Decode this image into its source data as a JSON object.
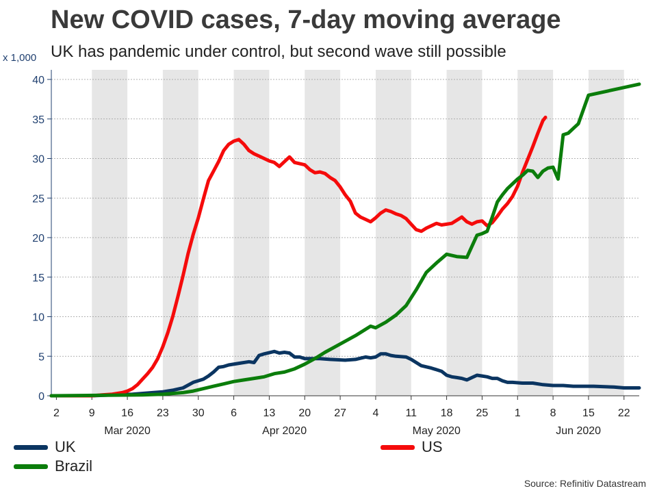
{
  "header": {
    "title": "New COVID cases, 7-day moving average",
    "subtitle": "UK has pandemic under control, but second wave still possible",
    "unit": "x 1,000"
  },
  "source": "Source: Refinitiv Datastream",
  "colors": {
    "UK": "#0b3561",
    "US": "#f50b0b",
    "Brazil": "#0b7d0b",
    "band": "#e6e6e6",
    "axis": "#1f3f6f"
  },
  "chart_data": {
    "type": "line",
    "title": "New COVID cases, 7-day moving average",
    "subtitle": "UK has pandemic under control, but second wave still possible",
    "ylabel": "x 1,000",
    "ylim": [
      0,
      40
    ],
    "yticks": [
      0,
      5,
      10,
      15,
      20,
      25,
      30,
      35,
      40
    ],
    "xlim_days": [
      0,
      116
    ],
    "x_day0": "2020-03-01",
    "xticks": [
      {
        "day": 1,
        "label": "2"
      },
      {
        "day": 8,
        "label": "9"
      },
      {
        "day": 15,
        "label": "16"
      },
      {
        "day": 22,
        "label": "23"
      },
      {
        "day": 29,
        "label": "30"
      },
      {
        "day": 36,
        "label": "6"
      },
      {
        "day": 43,
        "label": "13"
      },
      {
        "day": 50,
        "label": "20"
      },
      {
        "day": 57,
        "label": "27"
      },
      {
        "day": 64,
        "label": "4"
      },
      {
        "day": 71,
        "label": "11"
      },
      {
        "day": 78,
        "label": "18"
      },
      {
        "day": 85,
        "label": "25"
      },
      {
        "day": 92,
        "label": "1"
      },
      {
        "day": 99,
        "label": "8"
      },
      {
        "day": 106,
        "label": "15"
      },
      {
        "day": 113,
        "label": "22"
      }
    ],
    "months": [
      {
        "day": 15,
        "label": "Mar 2020"
      },
      {
        "day": 46,
        "label": "Apr 2020"
      },
      {
        "day": 76,
        "label": "May 2020"
      },
      {
        "day": 104,
        "label": "Jun 2020"
      }
    ],
    "week_bands": [
      [
        8,
        15
      ],
      [
        22,
        29
      ],
      [
        36,
        43
      ],
      [
        50,
        57
      ],
      [
        64,
        71
      ],
      [
        78,
        85
      ],
      [
        92,
        99
      ],
      [
        106,
        113
      ]
    ],
    "grid": true,
    "legend_position": "bottom",
    "series": [
      {
        "name": "UK",
        "points": [
          [
            0,
            0
          ],
          [
            8,
            0
          ],
          [
            12,
            0.1
          ],
          [
            16,
            0.2
          ],
          [
            20,
            0.4
          ],
          [
            22,
            0.5
          ],
          [
            24,
            0.7
          ],
          [
            26,
            1.0
          ],
          [
            28,
            1.7
          ],
          [
            30,
            2.1
          ],
          [
            31,
            2.5
          ],
          [
            32,
            3.0
          ],
          [
            33,
            3.6
          ],
          [
            34,
            3.7
          ],
          [
            35,
            3.9
          ],
          [
            37,
            4.1
          ],
          [
            39,
            4.3
          ],
          [
            40,
            4.2
          ],
          [
            41,
            5.1
          ],
          [
            42,
            5.3
          ],
          [
            44,
            5.6
          ],
          [
            45,
            5.4
          ],
          [
            46,
            5.5
          ],
          [
            47,
            5.4
          ],
          [
            48,
            4.9
          ],
          [
            49,
            4.9
          ],
          [
            50,
            4.7
          ],
          [
            53,
            4.7
          ],
          [
            55,
            4.6
          ],
          [
            58,
            4.5
          ],
          [
            60,
            4.6
          ],
          [
            62,
            4.9
          ],
          [
            63,
            4.8
          ],
          [
            64,
            4.9
          ],
          [
            65,
            5.3
          ],
          [
            66,
            5.3
          ],
          [
            67,
            5.1
          ],
          [
            68,
            5.0
          ],
          [
            70,
            4.9
          ],
          [
            71,
            4.6
          ],
          [
            72,
            4.2
          ],
          [
            73,
            3.8
          ],
          [
            75,
            3.5
          ],
          [
            76,
            3.3
          ],
          [
            77,
            3.1
          ],
          [
            78,
            2.6
          ],
          [
            79,
            2.4
          ],
          [
            80,
            2.3
          ],
          [
            81,
            2.2
          ],
          [
            82,
            2.0
          ],
          [
            83,
            2.3
          ],
          [
            84,
            2.6
          ],
          [
            85,
            2.5
          ],
          [
            86,
            2.4
          ],
          [
            87,
            2.2
          ],
          [
            88,
            2.2
          ],
          [
            89,
            1.9
          ],
          [
            90,
            1.7
          ],
          [
            91,
            1.7
          ],
          [
            93,
            1.6
          ],
          [
            95,
            1.6
          ],
          [
            97,
            1.4
          ],
          [
            99,
            1.3
          ],
          [
            101,
            1.3
          ],
          [
            103,
            1.2
          ],
          [
            107,
            1.2
          ],
          [
            111,
            1.1
          ],
          [
            113,
            1.0
          ],
          [
            116,
            1.0
          ]
        ]
      },
      {
        "name": "US",
        "points": [
          [
            0,
            0
          ],
          [
            8,
            0
          ],
          [
            10,
            0.1
          ],
          [
            12,
            0.2
          ],
          [
            14,
            0.4
          ],
          [
            15,
            0.6
          ],
          [
            16,
            0.9
          ],
          [
            17,
            1.4
          ],
          [
            18,
            2.1
          ],
          [
            19,
            2.8
          ],
          [
            20,
            3.6
          ],
          [
            21,
            4.7
          ],
          [
            22,
            6.2
          ],
          [
            23,
            8.0
          ],
          [
            24,
            10.1
          ],
          [
            25,
            12.6
          ],
          [
            26,
            15.2
          ],
          [
            27,
            18.0
          ],
          [
            28,
            20.4
          ],
          [
            29,
            22.5
          ],
          [
            30,
            24.9
          ],
          [
            31,
            27.2
          ],
          [
            32,
            28.4
          ],
          [
            33,
            29.6
          ],
          [
            34,
            31.0
          ],
          [
            35,
            31.8
          ],
          [
            36,
            32.2
          ],
          [
            37,
            32.4
          ],
          [
            38,
            31.8
          ],
          [
            39,
            31.0
          ],
          [
            40,
            30.6
          ],
          [
            41,
            30.3
          ],
          [
            42,
            30.0
          ],
          [
            43,
            29.7
          ],
          [
            44,
            29.5
          ],
          [
            45,
            29.0
          ],
          [
            46,
            29.6
          ],
          [
            47,
            30.2
          ],
          [
            48,
            29.5
          ],
          [
            50,
            29.2
          ],
          [
            51,
            28.6
          ],
          [
            52,
            28.2
          ],
          [
            53,
            28.3
          ],
          [
            54,
            28.1
          ],
          [
            55,
            27.6
          ],
          [
            56,
            27.2
          ],
          [
            57,
            26.4
          ],
          [
            58,
            25.4
          ],
          [
            59,
            24.6
          ],
          [
            60,
            23.1
          ],
          [
            61,
            22.6
          ],
          [
            62,
            22.3
          ],
          [
            63,
            22.0
          ],
          [
            64,
            22.5
          ],
          [
            65,
            23.1
          ],
          [
            66,
            23.5
          ],
          [
            67,
            23.3
          ],
          [
            68,
            23.0
          ],
          [
            69,
            22.8
          ],
          [
            70,
            22.4
          ],
          [
            71,
            21.7
          ],
          [
            72,
            21.0
          ],
          [
            73,
            20.8
          ],
          [
            74,
            21.2
          ],
          [
            75,
            21.5
          ],
          [
            76,
            21.8
          ],
          [
            77,
            21.6
          ],
          [
            78,
            21.7
          ],
          [
            79,
            21.8
          ],
          [
            80,
            22.2
          ],
          [
            81,
            22.6
          ],
          [
            82,
            22.0
          ],
          [
            83,
            21.7
          ],
          [
            84,
            22.0
          ],
          [
            85,
            22.1
          ],
          [
            86,
            21.5
          ],
          [
            87,
            21.9
          ],
          [
            88,
            22.7
          ],
          [
            89,
            23.6
          ],
          [
            90,
            24.3
          ],
          [
            91,
            25.2
          ],
          [
            92,
            26.5
          ],
          [
            93,
            28.3
          ],
          [
            94,
            29.9
          ],
          [
            95,
            31.5
          ],
          [
            96,
            33.2
          ],
          [
            97,
            34.8
          ],
          [
            97.5,
            35.2
          ]
        ]
      },
      {
        "name": "Brazil",
        "points": [
          [
            0,
            0
          ],
          [
            18,
            0.1
          ],
          [
            22,
            0.2
          ],
          [
            26,
            0.4
          ],
          [
            28,
            0.6
          ],
          [
            30,
            0.9
          ],
          [
            32,
            1.2
          ],
          [
            34,
            1.5
          ],
          [
            36,
            1.8
          ],
          [
            38,
            2.0
          ],
          [
            40,
            2.2
          ],
          [
            42,
            2.4
          ],
          [
            44,
            2.8
          ],
          [
            46,
            3.0
          ],
          [
            48,
            3.4
          ],
          [
            50,
            4.0
          ],
          [
            52,
            4.7
          ],
          [
            54,
            5.5
          ],
          [
            56,
            6.2
          ],
          [
            58,
            6.9
          ],
          [
            60,
            7.6
          ],
          [
            62,
            8.4
          ],
          [
            63,
            8.8
          ],
          [
            64,
            8.6
          ],
          [
            66,
            9.3
          ],
          [
            68,
            10.2
          ],
          [
            70,
            11.4
          ],
          [
            72,
            13.4
          ],
          [
            74,
            15.6
          ],
          [
            76,
            16.8
          ],
          [
            78,
            17.9
          ],
          [
            80,
            17.6
          ],
          [
            82,
            17.5
          ],
          [
            83,
            18.9
          ],
          [
            84,
            20.3
          ],
          [
            85,
            20.5
          ],
          [
            86,
            20.8
          ],
          [
            87,
            22.6
          ],
          [
            88,
            24.5
          ],
          [
            89,
            25.4
          ],
          [
            90,
            26.2
          ],
          [
            91,
            26.8
          ],
          [
            92,
            27.4
          ],
          [
            93,
            27.9
          ],
          [
            94,
            28.5
          ],
          [
            95,
            28.4
          ],
          [
            96,
            27.6
          ],
          [
            97,
            28.4
          ],
          [
            98,
            28.8
          ],
          [
            99,
            28.9
          ],
          [
            100,
            27.4
          ],
          [
            101,
            33.0
          ],
          [
            102,
            33.2
          ],
          [
            103,
            33.8
          ],
          [
            104,
            34.4
          ],
          [
            105,
            36.2
          ],
          [
            106,
            38.0
          ],
          [
            116,
            39.4
          ]
        ]
      }
    ]
  }
}
